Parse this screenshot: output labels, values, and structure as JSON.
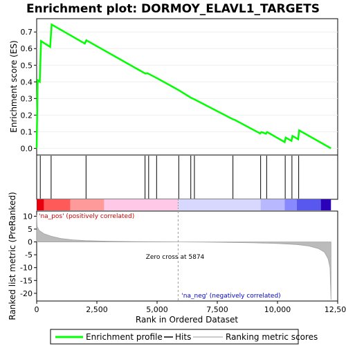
{
  "chart_data": {
    "type": "line",
    "title": "Enrichment plot: DORMOY_ELAVL1_TARGETS",
    "es_panel": {
      "ylabel": "Enrichment score (ES)",
      "ylim": [
        -0.04,
        0.78
      ],
      "yticks": [
        "0.0",
        "0.1",
        "0.2",
        "0.3",
        "0.4",
        "0.5",
        "0.6",
        "0.7"
      ],
      "ytick_values": [
        0.0,
        0.1,
        0.2,
        0.3,
        0.4,
        0.5,
        0.6,
        0.7
      ],
      "line_color": "#00ff00",
      "profile": [
        [
          0,
          0.0
        ],
        [
          40,
          0.41
        ],
        [
          130,
          0.4
        ],
        [
          180,
          0.645
        ],
        [
          560,
          0.61
        ],
        [
          620,
          0.745
        ],
        [
          2000,
          0.63
        ],
        [
          2060,
          0.65
        ],
        [
          4450,
          0.455
        ],
        [
          4520,
          0.45
        ],
        [
          4600,
          0.452
        ],
        [
          4960,
          0.425
        ],
        [
          5900,
          0.35
        ],
        [
          6400,
          0.305
        ],
        [
          6550,
          0.295
        ],
        [
          8150,
          0.175
        ],
        [
          8220,
          0.172
        ],
        [
          9280,
          0.09
        ],
        [
          9330,
          0.098
        ],
        [
          9520,
          0.088
        ],
        [
          9570,
          0.098
        ],
        [
          10300,
          0.038
        ],
        [
          10340,
          0.065
        ],
        [
          10580,
          0.045
        ],
        [
          10620,
          0.075
        ],
        [
          10860,
          0.055
        ],
        [
          10900,
          0.108
        ],
        [
          12220,
          0.0
        ]
      ]
    },
    "hits": [
      150,
      600,
      2050,
      4500,
      4650,
      4980,
      5900,
      6400,
      6550,
      8150,
      9300,
      9550,
      10320,
      10600,
      10880
    ],
    "metric_panel": {
      "ylabel": "Ranked list metric (PreRanked)",
      "xlabel": "Rank in Ordered Dataset",
      "ylim": [
        -23,
        12
      ],
      "yticks": [
        "10",
        "5",
        "0",
        "-5",
        "-10",
        "-15",
        "-20"
      ],
      "ytick_values": [
        10,
        5,
        0,
        -5,
        -10,
        -15,
        -20
      ],
      "xticks": [
        "0",
        "2,500",
        "5,000",
        "7,500",
        "10,000",
        "12,500"
      ],
      "xtick_values": [
        0,
        2500,
        5000,
        7500,
        10000,
        12500
      ],
      "xlim": [
        0,
        12500
      ],
      "zero_cross": 5874,
      "metric_curve": [
        [
          0,
          10.5
        ],
        [
          20,
          6.0
        ],
        [
          100,
          4.5
        ],
        [
          300,
          3.2
        ],
        [
          600,
          2.2
        ],
        [
          1000,
          1.3
        ],
        [
          1500,
          0.8
        ],
        [
          2000,
          0.5
        ],
        [
          3000,
          0.25
        ],
        [
          4000,
          0.12
        ],
        [
          5000,
          0.05
        ],
        [
          5874,
          0.0
        ],
        [
          7000,
          -0.08
        ],
        [
          8000,
          -0.2
        ],
        [
          9000,
          -0.35
        ],
        [
          10000,
          -0.6
        ],
        [
          10800,
          -1.0
        ],
        [
          11300,
          -1.6
        ],
        [
          11700,
          -2.6
        ],
        [
          11950,
          -4.0
        ],
        [
          12100,
          -6.5
        ],
        [
          12180,
          -10.0
        ],
        [
          12220,
          -22.5
        ]
      ],
      "annotations": {
        "pos": "'na_pos' (positively correlated)",
        "zero": "Zero cross at 5874",
        "neg": "'na_neg' (negatively correlated)"
      },
      "pos_color": "#cc0000",
      "neg_color": "#0000cc"
    },
    "legend": {
      "items": [
        "Enrichment profile",
        "Hits",
        "Ranking metric scores"
      ],
      "colors": [
        "#00ff00",
        "#000000",
        "#bbbbbb"
      ]
    }
  }
}
